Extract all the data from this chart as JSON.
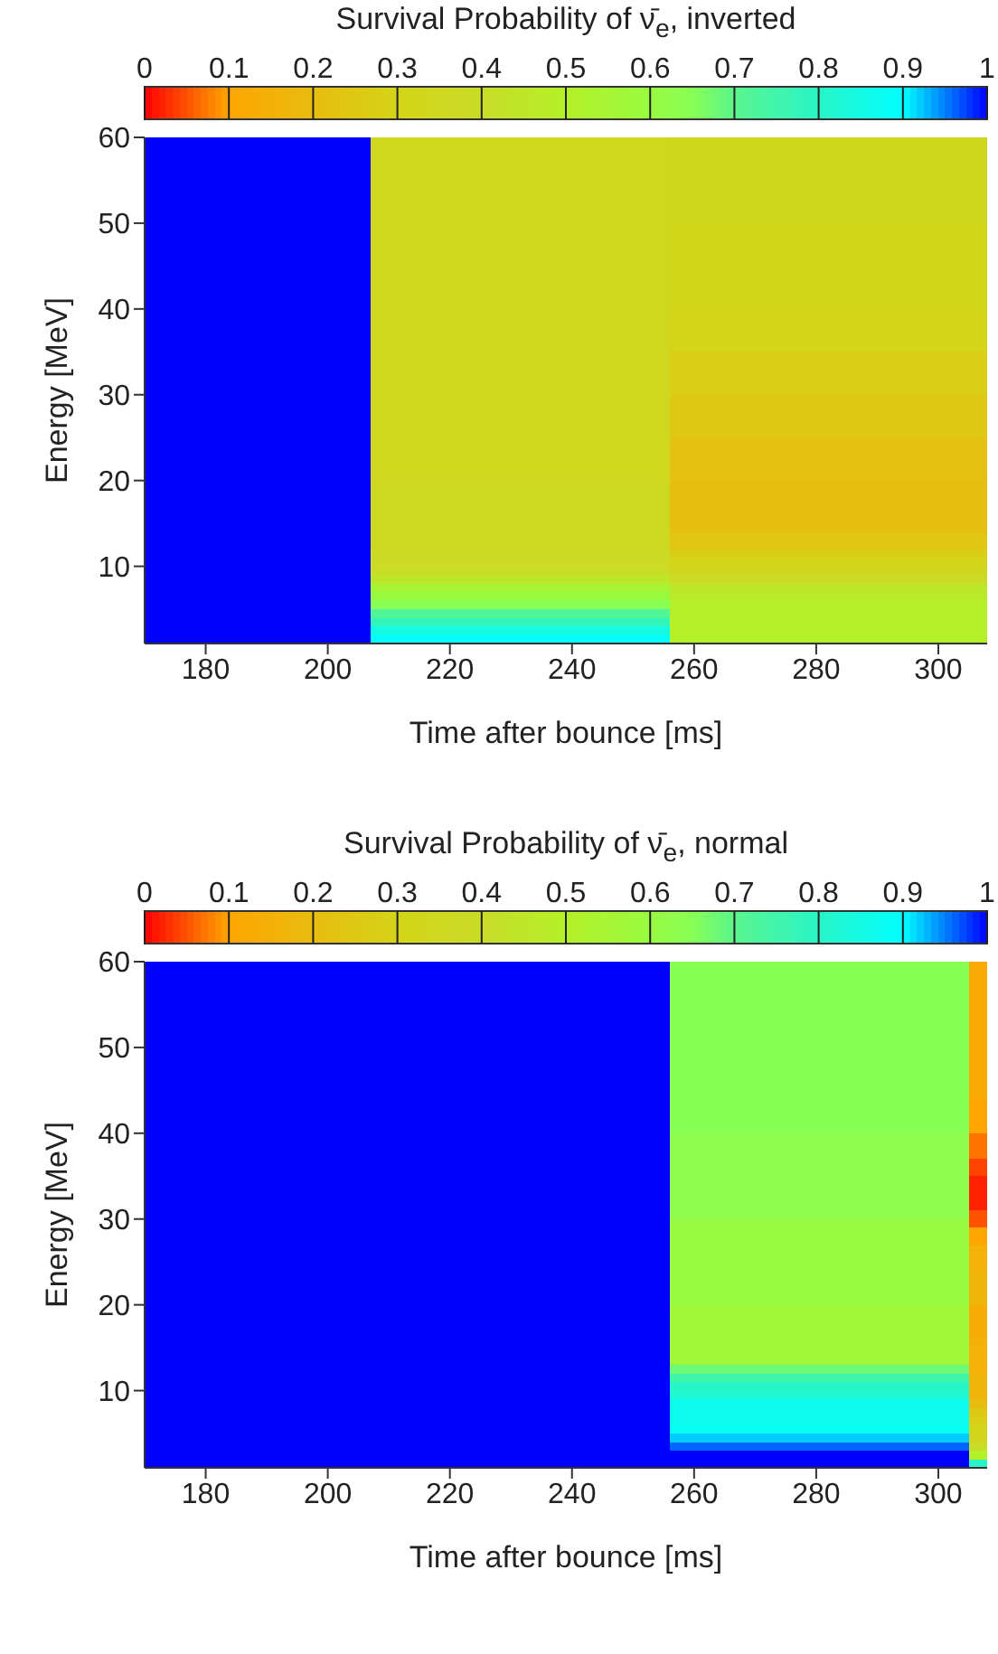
{
  "chart_data": [
    {
      "type": "heatmap",
      "title": "Survival Probability of ν̄$_{e}$, inverted",
      "xlabel": "Time after bounce [ms]",
      "ylabel": "Energy [MeV]",
      "x": [
        188.5,
        225.5,
        286.5
      ],
      "xlim": [
        170,
        308
      ],
      "xticks": [
        180,
        200,
        220,
        240,
        260,
        280,
        300
      ],
      "ylim": [
        1,
        60
      ],
      "yticks": [
        10,
        20,
        30,
        40,
        50,
        60
      ],
      "clim": [
        0,
        1
      ],
      "cticks": [
        0,
        0.1,
        0.2,
        0.3,
        0.4,
        0.5,
        0.6,
        0.7,
        0.8,
        0.9,
        1
      ],
      "cells": [
        [
          1,
          0.34,
          0.33
        ],
        [
          1,
          0.34,
          0.33
        ],
        [
          1,
          0.34,
          0.33
        ],
        [
          1,
          0.34,
          0.33
        ],
        [
          1,
          0.34,
          0.33
        ],
        [
          1,
          0.34,
          0.33
        ],
        [
          1,
          0.34,
          0.33
        ],
        [
          1,
          0.34,
          0.33
        ],
        [
          1,
          0.34,
          0.33
        ],
        [
          1,
          0.34,
          0.33
        ],
        [
          1,
          0.34,
          0.32
        ],
        [
          1,
          0.34,
          0.32
        ],
        [
          1,
          0.34,
          0.32
        ],
        [
          1,
          0.34,
          0.32
        ],
        [
          1,
          0.34,
          0.32
        ],
        [
          1,
          0.34,
          0.32
        ],
        [
          1,
          0.34,
          0.32
        ],
        [
          1,
          0.34,
          0.32
        ],
        [
          1,
          0.34,
          0.32
        ],
        [
          1,
          0.34,
          0.32
        ],
        [
          1,
          0.34,
          0.3
        ],
        [
          1,
          0.34,
          0.3
        ],
        [
          1,
          0.34,
          0.3
        ],
        [
          1,
          0.34,
          0.3
        ],
        [
          1,
          0.34,
          0.3
        ],
        [
          1,
          0.34,
          0.28
        ],
        [
          1,
          0.34,
          0.28
        ],
        [
          1,
          0.34,
          0.28
        ],
        [
          1,
          0.34,
          0.28
        ],
        [
          1,
          0.34,
          0.28
        ],
        [
          1,
          0.34,
          0.25
        ],
        [
          1,
          0.34,
          0.25
        ],
        [
          1,
          0.34,
          0.25
        ],
        [
          1,
          0.34,
          0.25
        ],
        [
          1,
          0.34,
          0.25
        ],
        [
          1,
          0.34,
          0.22
        ],
        [
          1,
          0.34,
          0.22
        ],
        [
          1,
          0.34,
          0.22
        ],
        [
          1,
          0.34,
          0.22
        ],
        [
          1,
          0.34,
          0.22
        ],
        [
          1,
          0.35,
          0.21
        ],
        [
          1,
          0.35,
          0.21
        ],
        [
          1,
          0.35,
          0.21
        ],
        [
          1,
          0.35,
          0.21
        ],
        [
          1,
          0.35,
          0.21
        ],
        [
          1,
          0.35,
          0.21
        ],
        [
          1,
          0.35,
          0.24
        ],
        [
          1,
          0.35,
          0.24
        ],
        [
          1,
          0.37,
          0.27
        ],
        [
          1,
          0.37,
          0.3
        ],
        [
          1,
          0.4,
          0.33
        ],
        [
          1,
          0.45,
          0.38
        ],
        [
          1,
          0.55,
          0.45
        ],
        [
          1,
          0.6,
          0.48
        ],
        [
          1,
          0.65,
          0.5
        ],
        [
          1,
          0.72,
          0.5
        ],
        [
          1,
          0.78,
          0.5
        ],
        [
          1,
          0.85,
          0.5
        ],
        [
          1,
          0.9,
          0.5
        ]
      ]
    },
    {
      "type": "heatmap",
      "title": "Survival Probability of ν̄$_{e}$, normal",
      "xlabel": "Time after bounce [ms]",
      "ylabel": "Energy [MeV]",
      "x": [
        171,
        209,
        303,
        307
      ],
      "xlim": [
        170,
        308
      ],
      "xticks": [
        180,
        200,
        220,
        240,
        260,
        280,
        300
      ],
      "ylim": [
        1,
        60
      ],
      "yticks": [
        10,
        20,
        30,
        40,
        50,
        60
      ],
      "clim": [
        0,
        1
      ],
      "cticks": [
        0,
        0.1,
        0.2,
        0.3,
        0.4,
        0.5,
        0.6,
        0.7,
        0.8,
        0.9,
        1
      ],
      "cells": [
        [
          1,
          1,
          0.65,
          0.13
        ],
        [
          1,
          1,
          0.65,
          0.13
        ],
        [
          1,
          1,
          0.65,
          0.13
        ],
        [
          1,
          1,
          0.65,
          0.13
        ],
        [
          1,
          1,
          0.65,
          0.13
        ],
        [
          1,
          1,
          0.65,
          0.13
        ],
        [
          1,
          1,
          0.65,
          0.13
        ],
        [
          1,
          1,
          0.65,
          0.13
        ],
        [
          1,
          1,
          0.65,
          0.13
        ],
        [
          1,
          1,
          0.65,
          0.13
        ],
        [
          1,
          1,
          0.65,
          0.13
        ],
        [
          1,
          1,
          0.65,
          0.13
        ],
        [
          1,
          1,
          0.65,
          0.13
        ],
        [
          1,
          1,
          0.65,
          0.13
        ],
        [
          1,
          1,
          0.65,
          0.13
        ],
        [
          1,
          1,
          0.65,
          0.13
        ],
        [
          1,
          1,
          0.65,
          0.1
        ],
        [
          1,
          1,
          0.65,
          0.1
        ],
        [
          1,
          1,
          0.65,
          0.1
        ],
        [
          1,
          1,
          0.65,
          0.1
        ],
        [
          1,
          1,
          0.63,
          0.07
        ],
        [
          1,
          1,
          0.63,
          0.07
        ],
        [
          1,
          1,
          0.63,
          0.07
        ],
        [
          1,
          1,
          0.63,
          0.04
        ],
        [
          1,
          1,
          0.63,
          0.04
        ],
        [
          1,
          1,
          0.63,
          0.02
        ],
        [
          1,
          1,
          0.63,
          0.02
        ],
        [
          1,
          1,
          0.63,
          0.02
        ],
        [
          1,
          1,
          0.63,
          0.02
        ],
        [
          1,
          1,
          0.63,
          0.05
        ],
        [
          1,
          1,
          0.6,
          0.05
        ],
        [
          1,
          1,
          0.6,
          0.1
        ],
        [
          1,
          1,
          0.6,
          0.1
        ],
        [
          1,
          1,
          0.6,
          0.15
        ],
        [
          1,
          1,
          0.6,
          0.15
        ],
        [
          1,
          1,
          0.6,
          0.15
        ],
        [
          1,
          1,
          0.6,
          0.17
        ],
        [
          1,
          1,
          0.6,
          0.17
        ],
        [
          1,
          1,
          0.6,
          0.17
        ],
        [
          1,
          1,
          0.6,
          0.17
        ],
        [
          1,
          1,
          0.57,
          0.14
        ],
        [
          1,
          1,
          0.57,
          0.14
        ],
        [
          1,
          1,
          0.57,
          0.14
        ],
        [
          1,
          1,
          0.57,
          0.14
        ],
        [
          1,
          1,
          0.57,
          0.15
        ],
        [
          1,
          1,
          0.57,
          0.15
        ],
        [
          1,
          1,
          0.57,
          0.15
        ],
        [
          1,
          1,
          0.68,
          0.15
        ],
        [
          1,
          1,
          0.75,
          0.17
        ],
        [
          1,
          1,
          0.8,
          0.17
        ],
        [
          1,
          1,
          0.82,
          0.17
        ],
        [
          1,
          1,
          0.87,
          0.2
        ],
        [
          1,
          1,
          0.87,
          0.25
        ],
        [
          1,
          1,
          0.87,
          0.28
        ],
        [
          1,
          1,
          0.88,
          0.3
        ],
        [
          1,
          1,
          0.92,
          0.33
        ],
        [
          1,
          1,
          0.96,
          0.4
        ],
        [
          1,
          1,
          1,
          0.5
        ],
        [
          1,
          1,
          1,
          0.8
        ]
      ]
    }
  ]
}
